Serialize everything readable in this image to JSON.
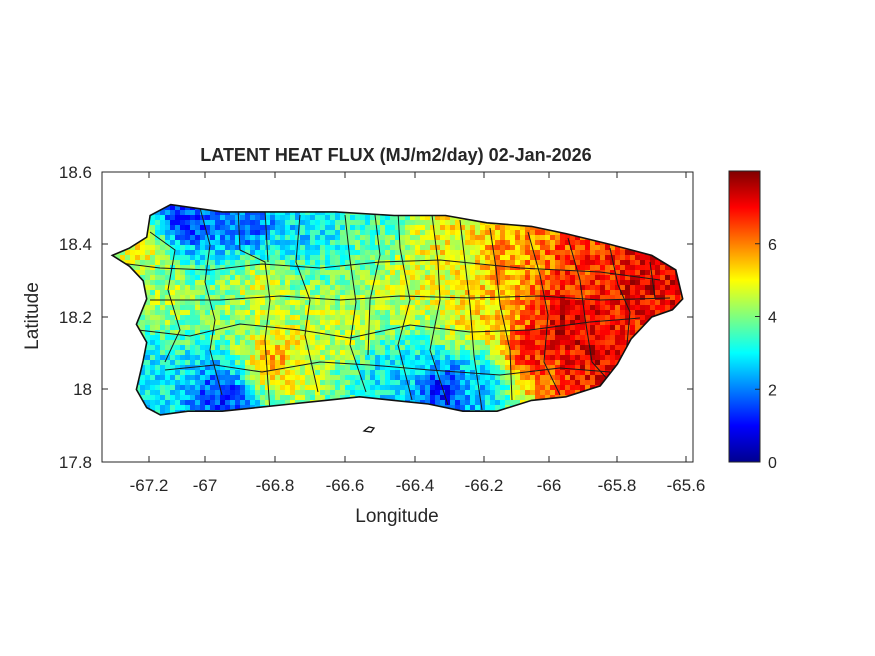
{
  "title": "LATENT HEAT FLUX (MJ/m2/day) 02-Jan-2026",
  "xlabel": "Longitude",
  "ylabel": "Latitude",
  "xticks": [
    "-67.2",
    "-67",
    "-66.8",
    "-66.6",
    "-66.4",
    "-66.2",
    "-66",
    "-65.8",
    "-65.6"
  ],
  "yticks": [
    "18.6",
    "18.4",
    "18.2",
    "18",
    "17.8"
  ],
  "colorbar_ticks": [
    "0",
    "2",
    "4",
    "6"
  ],
  "colormap": "jet",
  "colors": {
    "low": "#00008f",
    "mid": "#7fff7f",
    "high": "#800000"
  },
  "chart_data": {
    "type": "heatmap",
    "title": "LATENT HEAT FLUX (MJ/m2/day) 02-Jan-2026",
    "xlabel": "Longitude",
    "ylabel": "Latitude",
    "xlim": [
      -67.3,
      -65.58
    ],
    "ylim": [
      17.8,
      18.6
    ],
    "clim": [
      0,
      8
    ],
    "colorbar_ticks": [
      0,
      2,
      4,
      6
    ],
    "region_outline_lonlat": [
      [
        -67.27,
        18.37
      ],
      [
        -67.22,
        18.39
      ],
      [
        -67.17,
        18.42
      ],
      [
        -67.16,
        18.48
      ],
      [
        -67.1,
        18.51
      ],
      [
        -66.95,
        18.49
      ],
      [
        -66.8,
        18.49
      ],
      [
        -66.62,
        18.49
      ],
      [
        -66.45,
        18.48
      ],
      [
        -66.3,
        18.48
      ],
      [
        -66.18,
        18.46
      ],
      [
        -66.05,
        18.45
      ],
      [
        -65.95,
        18.43
      ],
      [
        -65.82,
        18.4
      ],
      [
        -65.7,
        18.37
      ],
      [
        -65.63,
        18.33
      ],
      [
        -65.61,
        18.25
      ],
      [
        -65.64,
        18.22
      ],
      [
        -65.7,
        18.2
      ],
      [
        -65.76,
        18.14
      ],
      [
        -65.8,
        18.07
      ],
      [
        -65.85,
        18.01
      ],
      [
        -65.95,
        17.98
      ],
      [
        -66.05,
        17.97
      ],
      [
        -66.15,
        17.94
      ],
      [
        -66.25,
        17.94
      ],
      [
        -66.35,
        17.96
      ],
      [
        -66.45,
        17.97
      ],
      [
        -66.55,
        17.98
      ],
      [
        -66.65,
        17.97
      ],
      [
        -66.75,
        17.96
      ],
      [
        -66.85,
        17.95
      ],
      [
        -66.95,
        17.94
      ],
      [
        -67.05,
        17.94
      ],
      [
        -67.13,
        17.93
      ],
      [
        -67.17,
        17.95
      ],
      [
        -67.2,
        18.0
      ],
      [
        -67.18,
        18.08
      ],
      [
        -67.17,
        18.13
      ],
      [
        -67.2,
        18.18
      ],
      [
        -67.17,
        18.25
      ],
      [
        -67.18,
        18.3
      ],
      [
        -67.22,
        18.34
      ],
      [
        -67.27,
        18.37
      ]
    ],
    "value_anchors": [
      {
        "lon": -67.05,
        "lat": 18.47,
        "value": 1.5
      },
      {
        "lon": -66.88,
        "lat": 18.46,
        "value": 1.8
      },
      {
        "lon": -66.7,
        "lat": 18.45,
        "value": 2.8
      },
      {
        "lon": -66.5,
        "lat": 18.44,
        "value": 3.5
      },
      {
        "lon": -66.3,
        "lat": 18.42,
        "value": 5.0
      },
      {
        "lon": -66.1,
        "lat": 18.38,
        "value": 5.8
      },
      {
        "lon": -65.9,
        "lat": 18.35,
        "value": 6.6
      },
      {
        "lon": -65.72,
        "lat": 18.3,
        "value": 7.2
      },
      {
        "lon": -65.95,
        "lat": 18.18,
        "value": 7.4
      },
      {
        "lon": -65.86,
        "lat": 18.1,
        "value": 7.2
      },
      {
        "lon": -66.05,
        "lat": 18.1,
        "value": 6.8
      },
      {
        "lon": -66.2,
        "lat": 18.2,
        "value": 5.3
      },
      {
        "lon": -66.2,
        "lat": 18.02,
        "value": 2.5
      },
      {
        "lon": -66.3,
        "lat": 18.0,
        "value": 1.2
      },
      {
        "lon": -66.45,
        "lat": 18.04,
        "value": 2.8
      },
      {
        "lon": -66.6,
        "lat": 18.18,
        "value": 4.5
      },
      {
        "lon": -66.85,
        "lat": 18.28,
        "value": 4.6
      },
      {
        "lon": -66.8,
        "lat": 18.08,
        "value": 5.5
      },
      {
        "lon": -66.95,
        "lat": 17.98,
        "value": 1.5
      },
      {
        "lon": -67.1,
        "lat": 18.25,
        "value": 4.3
      },
      {
        "lon": -67.15,
        "lat": 18.05,
        "value": 3.0
      },
      {
        "lon": -67.2,
        "lat": 18.38,
        "value": 4.8
      },
      {
        "lon": -66.4,
        "lat": 18.28,
        "value": 4.8
      }
    ]
  }
}
